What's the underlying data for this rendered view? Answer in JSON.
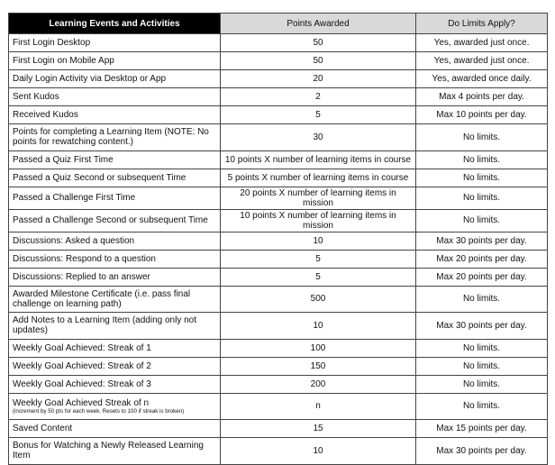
{
  "table": {
    "headers": [
      "Learning Events and Activities",
      "Points Awarded",
      "Do Limits Apply?"
    ],
    "header_colors": {
      "first_bg": "#000000",
      "first_text": "#ffffff",
      "other_bg": "#d9d9d9"
    },
    "rows": [
      {
        "activity": "First Login Desktop",
        "points": "50",
        "limits": "Yes, awarded just once."
      },
      {
        "activity": "First Login on Mobile App",
        "points": "50",
        "limits": "Yes, awarded just once."
      },
      {
        "activity": "Daily Login Activity via Desktop or App",
        "points": "20",
        "limits": "Yes, awarded once daily."
      },
      {
        "activity": "Sent Kudos",
        "points": "2",
        "limits": "Max 4 points per day."
      },
      {
        "activity": "Received Kudos",
        "points": "5",
        "limits": "Max 10 points per day."
      },
      {
        "activity": "Points for completing a Learning Item (NOTE: No points for rewatching content.)",
        "points": "30",
        "limits": "No limits."
      },
      {
        "activity": "Passed a Quiz First Time",
        "points": "10 points X number of learning items in course",
        "limits": "No limits."
      },
      {
        "activity": "Passed a Quiz Second or subsequent Time",
        "points": "5 points X number of learning items in course",
        "limits": "No limits."
      },
      {
        "activity": "Passed a Challenge First Time",
        "points": "20 points X number of learning items in mission",
        "limits": "No limits."
      },
      {
        "activity": "Passed a Challenge Second or subsequent Time",
        "points": "10 points X number of learning items in mission",
        "limits": "No limits."
      },
      {
        "activity": "Discussions: Asked a question",
        "points": "10",
        "limits": "Max 30 points per day."
      },
      {
        "activity": "Discussions: Respond to a question",
        "points": "5",
        "limits": "Max 20 points per day."
      },
      {
        "activity": "Discussions: Replied to an answer",
        "points": "5",
        "limits": "Max 20 points per day."
      },
      {
        "activity": "Awarded Milestone Certificate (i.e. pass final challenge on learning path)",
        "points": "500",
        "limits": "No limits."
      },
      {
        "activity": "Add Notes to a Learning Item (adding only not updates)",
        "points": "10",
        "limits": "Max 30 points per day."
      },
      {
        "activity": "Weekly Goal Achieved: Streak of 1",
        "points": "100",
        "limits": "No limits."
      },
      {
        "activity": "Weekly Goal Achieved: Streak of 2",
        "points": "150",
        "limits": "No limits."
      },
      {
        "activity": "Weekly Goal Achieved: Streak of 3",
        "points": "200",
        "limits": "No limits."
      },
      {
        "activity": "Weekly Goal Achieved Streak of n",
        "note": "(increment by 50 pts for each week. Resets to 100 if streak is broken)",
        "points": "n",
        "limits": "No limits."
      },
      {
        "activity": "Saved Content",
        "points": "15",
        "limits": "Max 15 points per day."
      },
      {
        "activity": "Bonus for Watching a Newly Released Learning Item",
        "points": "10",
        "limits": "Max 30 points per day."
      }
    ]
  }
}
